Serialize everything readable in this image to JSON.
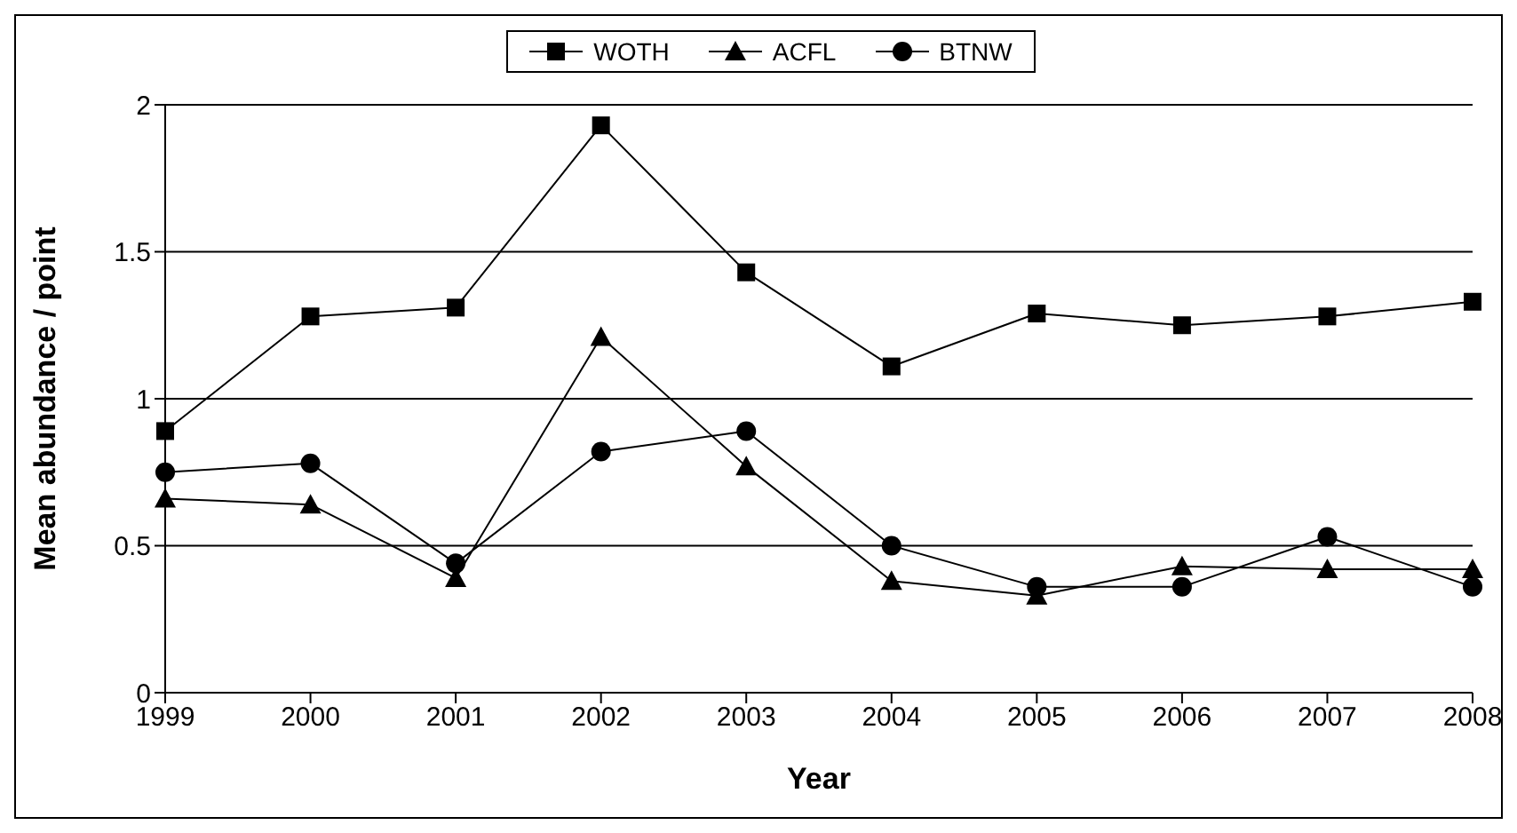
{
  "chart_data": {
    "type": "line",
    "xlabel": "Year",
    "ylabel": "Mean abundance / point",
    "categories": [
      "1999",
      "2000",
      "2001",
      "2002",
      "2003",
      "2004",
      "2005",
      "2006",
      "2007",
      "2008"
    ],
    "series": [
      {
        "name": "WOTH",
        "color": "#000000",
        "marker": "square",
        "values": [
          0.89,
          1.28,
          1.31,
          1.93,
          1.43,
          1.11,
          1.29,
          1.25,
          1.28,
          1.33
        ]
      },
      {
        "name": "ACFL",
        "color": "#000000",
        "marker": "triangle",
        "values": [
          0.66,
          0.64,
          0.39,
          1.21,
          0.77,
          0.38,
          0.33,
          0.43,
          0.42,
          0.42
        ]
      },
      {
        "name": "BTNW",
        "color": "#000000",
        "marker": "circle",
        "values": [
          0.75,
          0.78,
          0.44,
          0.82,
          0.89,
          0.5,
          0.36,
          0.36,
          0.53,
          0.36
        ]
      }
    ],
    "ylim": [
      0,
      2
    ],
    "yticks": [
      0,
      0.5,
      1,
      1.5,
      2
    ],
    "grid": "y",
    "legend": "top",
    "line_style": "solid"
  }
}
